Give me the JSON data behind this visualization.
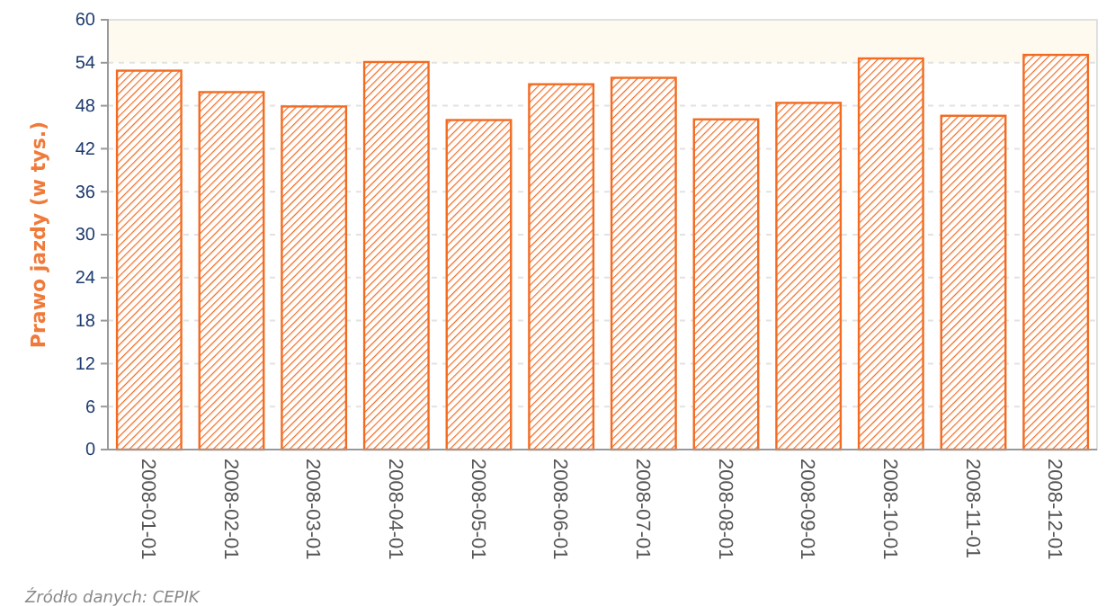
{
  "chart_data": {
    "type": "bar",
    "ylabel": "Prawo jazdy (w tys.)",
    "categories": [
      "2008-01-01",
      "2008-02-01",
      "2008-03-01",
      "2008-04-01",
      "2008-05-01",
      "2008-06-01",
      "2008-07-01",
      "2008-08-01",
      "2008-09-01",
      "2008-10-01",
      "2008-11-01",
      "2008-12-01"
    ],
    "values": [
      52.9,
      49.9,
      47.9,
      54.1,
      46.0,
      51.0,
      51.9,
      46.1,
      48.4,
      54.6,
      46.6,
      55.1
    ],
    "color": "#f26b21",
    "ylim": [
      0,
      60
    ],
    "yticks": [
      0,
      6,
      12,
      18,
      24,
      30,
      36,
      42,
      48,
      54,
      60
    ],
    "grid": "y",
    "bands": [
      {
        "axis": "y",
        "from": 54,
        "to": 60,
        "color": "#fefaf0"
      }
    ],
    "annotations": [
      "Źródło danych: CEPIK"
    ]
  }
}
